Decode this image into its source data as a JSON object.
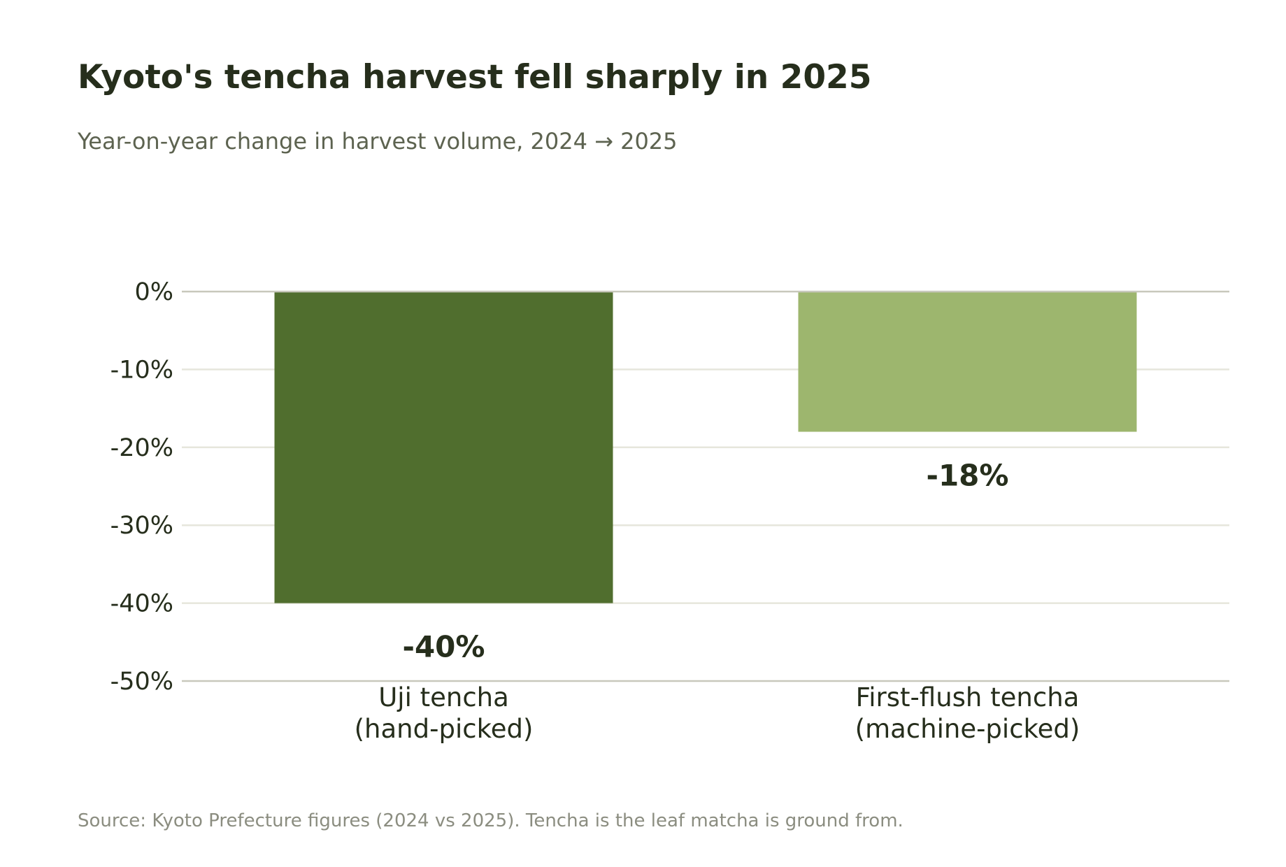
{
  "chart_data": {
    "type": "bar",
    "title": "Kyoto's tencha harvest fell sharply in 2025",
    "subtitle": "Year-on-year change in harvest volume, 2024 → 2025",
    "source": "Source: Kyoto Prefecture figures (2024 vs 2025). Tencha is the leaf matcha is ground from.",
    "xlabel": "",
    "ylabel": "",
    "ylim": [
      -50,
      0
    ],
    "yticks": [
      0,
      -10,
      -20,
      -30,
      -40,
      -50
    ],
    "ytick_labels": [
      "0%",
      "-10%",
      "-20%",
      "-30%",
      "-40%",
      "-50%"
    ],
    "grid": true,
    "legend": "none",
    "categories": [
      [
        "Uji tencha",
        "(hand-picked)"
      ],
      [
        "First-flush tencha",
        "(machine-picked)"
      ]
    ],
    "values": [
      -40,
      -18
    ],
    "value_labels": [
      "-40%",
      "-18%"
    ],
    "colors": [
      "#506e2e",
      "#9db66e"
    ]
  },
  "theme": {
    "title_color": "#262e1c",
    "subtitle_color": "#5d6350",
    "source_color": "#8b8d80",
    "tick_color": "#262e1c",
    "grid_color": "#e6e6dc",
    "axis_color": "#c8c8bc"
  }
}
